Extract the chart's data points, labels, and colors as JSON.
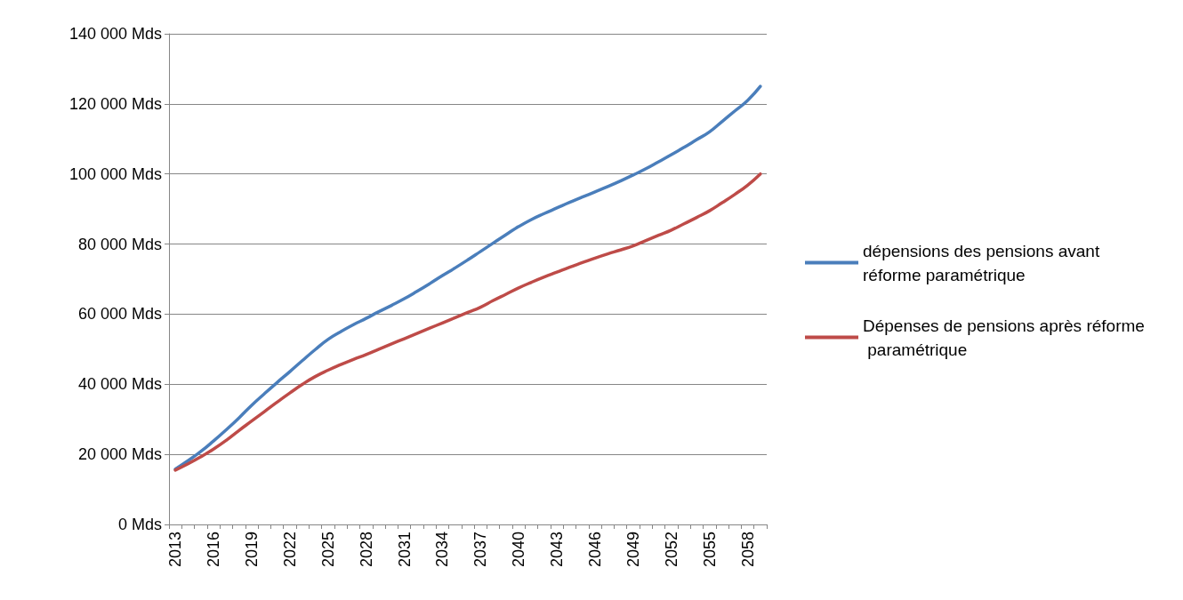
{
  "chart_data": {
    "type": "line",
    "categories": [
      "2013",
      null,
      null,
      "2016",
      null,
      null,
      "2019",
      null,
      null,
      "2022",
      null,
      null,
      "2025",
      null,
      null,
      "2028",
      null,
      null,
      "2031",
      null,
      null,
      "2034",
      null,
      null,
      "2037",
      null,
      null,
      "2040",
      null,
      null,
      "2043",
      null,
      null,
      "2046",
      null,
      null,
      "2049",
      null,
      null,
      "2052",
      null,
      null,
      "2055",
      null,
      null,
      "2058",
      null
    ],
    "series": [
      {
        "name": "dépensions des pensions avant réforme paramétrique",
        "color": "#4a7ebb",
        "values": [
          15800,
          18200,
          20800,
          23800,
          27000,
          30400,
          34000,
          37300,
          40500,
          43600,
          46800,
          49900,
          52800,
          55000,
          57000,
          58800,
          60700,
          62500,
          64400,
          66500,
          68700,
          71000,
          73200,
          75500,
          77900,
          80300,
          82700,
          85000,
          87000,
          88700,
          90300,
          91900,
          93400,
          94900,
          96400,
          98000,
          99700,
          101500,
          103500,
          105500,
          107600,
          109800,
          112000,
          115000,
          118000,
          121000,
          125000
        ]
      },
      {
        "name": "Dépenses de pensions après réforme paramétrique",
        "color": "#be4b48",
        "values": [
          15500,
          17300,
          19300,
          21500,
          24000,
          26800,
          29500,
          32200,
          34900,
          37500,
          40000,
          42200,
          44000,
          45600,
          47100,
          48500,
          50000,
          51500,
          53000,
          54500,
          56000,
          57500,
          59000,
          60500,
          62000,
          63900,
          65700,
          67500,
          69100,
          70600,
          72000,
          73400,
          74700,
          76000,
          77200,
          78300,
          79500,
          81000,
          82500,
          84000,
          85800,
          87600,
          89500,
          91800,
          94200,
          96800,
          100000
        ]
      }
    ],
    "ylim": [
      0,
      140000
    ],
    "yticks": [
      {
        "value": 0,
        "label": "0 Mds"
      },
      {
        "value": 20000,
        "label": "20 000 Mds"
      },
      {
        "value": 40000,
        "label": "40 000 Mds"
      },
      {
        "value": 60000,
        "label": "60 000 Mds"
      },
      {
        "value": 80000,
        "label": "80 000 Mds"
      },
      {
        "value": 100000,
        "label": "100 000 Mds"
      },
      {
        "value": 120000,
        "label": "120 000 Mds"
      },
      {
        "value": 140000,
        "label": "140 000 Mds"
      }
    ],
    "grid": "y",
    "legend": "right",
    "marker": "none",
    "line_style": "solid"
  }
}
